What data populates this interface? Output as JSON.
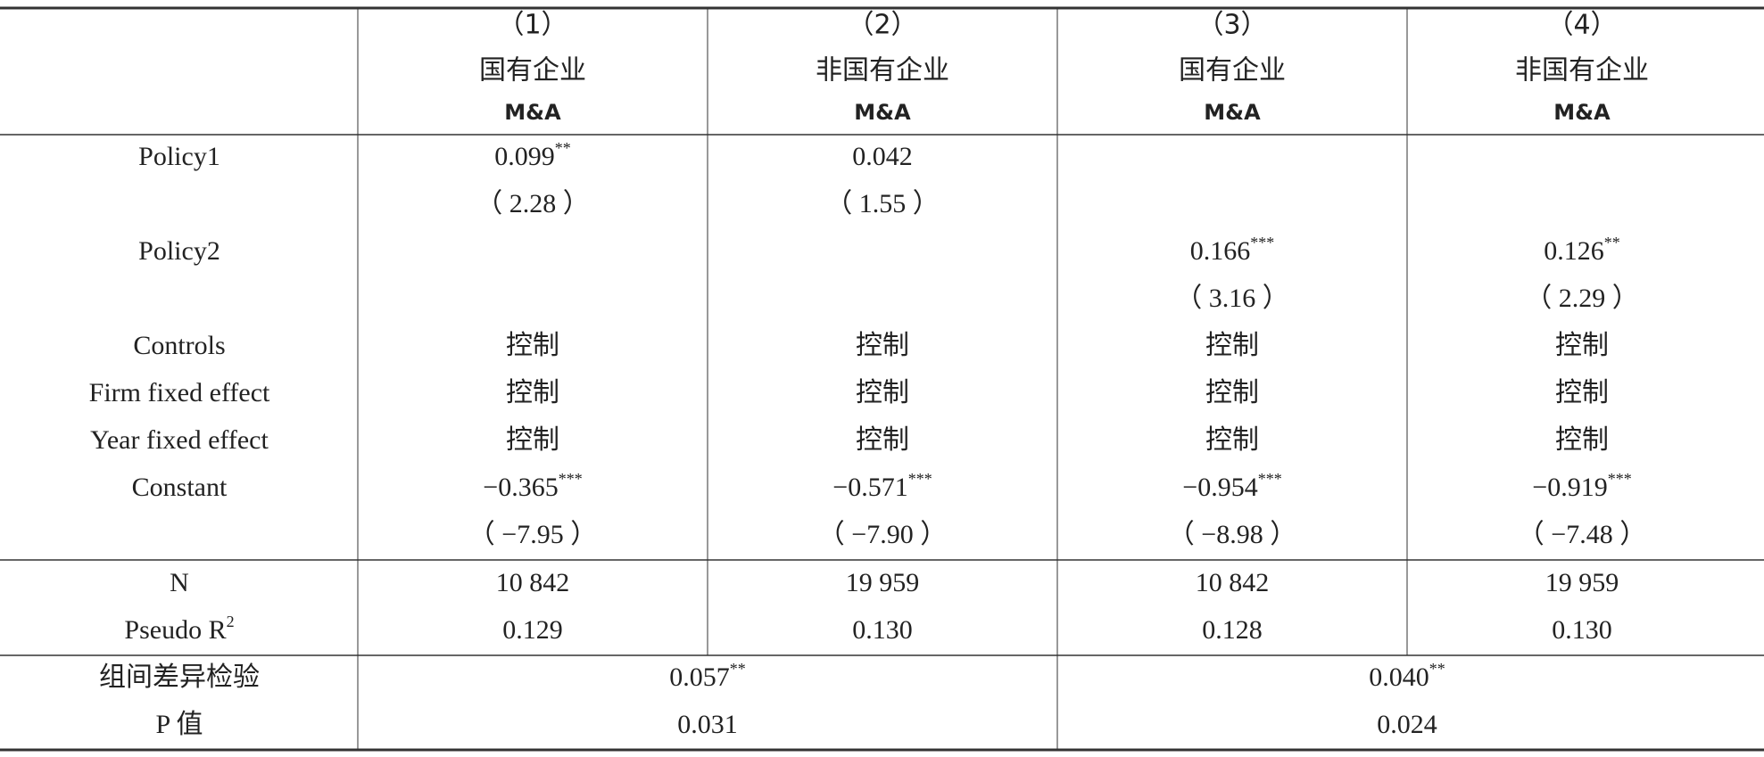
{
  "header": {
    "columns": [
      {
        "number": "（1）",
        "group": "国有企业",
        "dep": "M&A"
      },
      {
        "number": "（2）",
        "group": "非国有企业",
        "dep": "M&A"
      },
      {
        "number": "（3）",
        "group": "国有企业",
        "dep": "M&A"
      },
      {
        "number": "（4）",
        "group": "非国有企业",
        "dep": "M&A"
      }
    ]
  },
  "table": {
    "rows": [
      {
        "label": "Policy1",
        "cells": [
          {
            "text": "0.099",
            "sup": "**"
          },
          {
            "text": "0.042"
          },
          null,
          null
        ]
      },
      {
        "cells": [
          {
            "text": "（ 2.28 ）"
          },
          {
            "text": "（ 1.55 ）"
          },
          null,
          null
        ]
      },
      {
        "label": "Policy2",
        "cells": [
          null,
          null,
          {
            "text": "0.166",
            "sup": "***"
          },
          {
            "text": "0.126",
            "sup": "**"
          }
        ]
      },
      {
        "cells": [
          null,
          null,
          {
            "text": "（ 3.16 ）"
          },
          {
            "text": "（ 2.29 ）"
          }
        ]
      },
      {
        "label": "Controls",
        "cells": [
          {
            "text": "控制"
          },
          {
            "text": "控制"
          },
          {
            "text": "控制"
          },
          {
            "text": "控制"
          }
        ]
      },
      {
        "label": "Firm fixed effect",
        "cells": [
          {
            "text": "控制"
          },
          {
            "text": "控制"
          },
          {
            "text": "控制"
          },
          {
            "text": "控制"
          }
        ]
      },
      {
        "label": "Year fixed effect",
        "cells": [
          {
            "text": "控制"
          },
          {
            "text": "控制"
          },
          {
            "text": "控制"
          },
          {
            "text": "控制"
          }
        ]
      },
      {
        "label": "Constant",
        "cells": [
          {
            "text": "−0.365",
            "sup": "***"
          },
          {
            "text": "−0.571",
            "sup": "***"
          },
          {
            "text": "−0.954",
            "sup": "***"
          },
          {
            "text": "−0.919",
            "sup": "***"
          }
        ]
      },
      {
        "cells": [
          {
            "text": "（ −7.95 ）"
          },
          {
            "text": "（ −7.90 ）"
          },
          {
            "text": "（ −8.98 ）"
          },
          {
            "text": "（ −7.48 ）"
          }
        ]
      }
    ],
    "stats": [
      {
        "label": "N",
        "cells": [
          {
            "text": "10 842"
          },
          {
            "text": "19 959"
          },
          {
            "text": "10 842"
          },
          {
            "text": "19 959"
          }
        ]
      },
      {
        "label": "Pseudo R",
        "label_sup": "2",
        "cells": [
          {
            "text": "0.129"
          },
          {
            "text": "0.130"
          },
          {
            "text": "0.128"
          },
          {
            "text": "0.130"
          }
        ]
      }
    ]
  },
  "group_test": {
    "rows": [
      {
        "label": "组间差异检验",
        "cells": [
          {
            "text": "0.057",
            "sup": "**"
          },
          {
            "text": "0.040",
            "sup": "**"
          }
        ]
      },
      {
        "label": "P 值",
        "cells": [
          {
            "text": "0.031"
          },
          {
            "text": "0.024"
          }
        ]
      }
    ]
  }
}
